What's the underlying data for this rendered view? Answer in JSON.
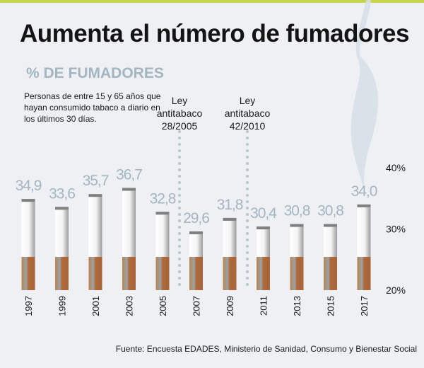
{
  "title": "Aumenta el número de fumadores",
  "subtitle": "% DE FUMADORES",
  "note": "Personas de entre 15 y 65 años que hayan consumido tabaco a diario en los últimos 30 días.",
  "source": "Fuente: Encuesta EDADES, Ministerio de Sanidad, Consumo y Bienestar Social",
  "colors": {
    "accent_bar": "#c5d44a",
    "value_label": "#a3b5c1",
    "filter": "#b06a3a",
    "smoke": "#d5dfe5"
  },
  "chart_data": {
    "type": "bar",
    "categories": [
      "1997",
      "1999",
      "2001",
      "2003",
      "2005",
      "2007",
      "2009",
      "2011",
      "2013",
      "2015",
      "2017"
    ],
    "values": [
      34.9,
      33.6,
      35.7,
      36.7,
      32.8,
      29.6,
      31.8,
      30.4,
      30.8,
      30.8,
      34.0
    ],
    "value_labels": [
      "34,9",
      "33,6",
      "35,7",
      "36,7",
      "32,8",
      "29,6",
      "31,8",
      "30,4",
      "30,8",
      "30,8",
      "34,0"
    ],
    "ylim": [
      20,
      40
    ],
    "yticks": [
      "20%",
      "30%",
      "40%"
    ],
    "annotations": [
      {
        "after": "2005",
        "label_lines": [
          "Ley",
          "antitabaco",
          "28/2005"
        ]
      },
      {
        "after": "2009",
        "label_lines": [
          "Ley",
          "antitabaco",
          "42/2010"
        ]
      }
    ]
  }
}
